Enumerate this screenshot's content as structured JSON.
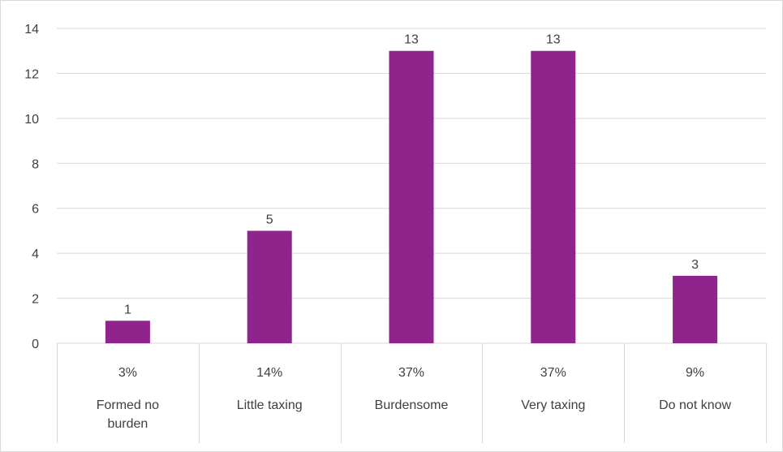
{
  "chart_data": {
    "type": "bar",
    "categories": [
      "Formed no burden",
      "Little taxing",
      "Burdensome",
      "Very taxing",
      "Do not know"
    ],
    "category_lines": [
      [
        "Formed no",
        "burden"
      ],
      [
        "Little taxing"
      ],
      [
        "Burdensome"
      ],
      [
        "Very taxing"
      ],
      [
        "Do not know"
      ]
    ],
    "percent_labels": [
      "3%",
      "14%",
      "37%",
      "37%",
      "9%"
    ],
    "values": [
      1,
      5,
      13,
      13,
      3
    ],
    "data_labels": [
      "1",
      "5",
      "13",
      "13",
      "3"
    ],
    "ylim": [
      0,
      14
    ],
    "yticks": [
      "0",
      "2",
      "4",
      "6",
      "8",
      "10",
      "12",
      "14"
    ],
    "grid": true,
    "legend": "none",
    "bar_color": "#8e248c",
    "grid_color": "#d9d9d9",
    "text_color": "#404040"
  }
}
